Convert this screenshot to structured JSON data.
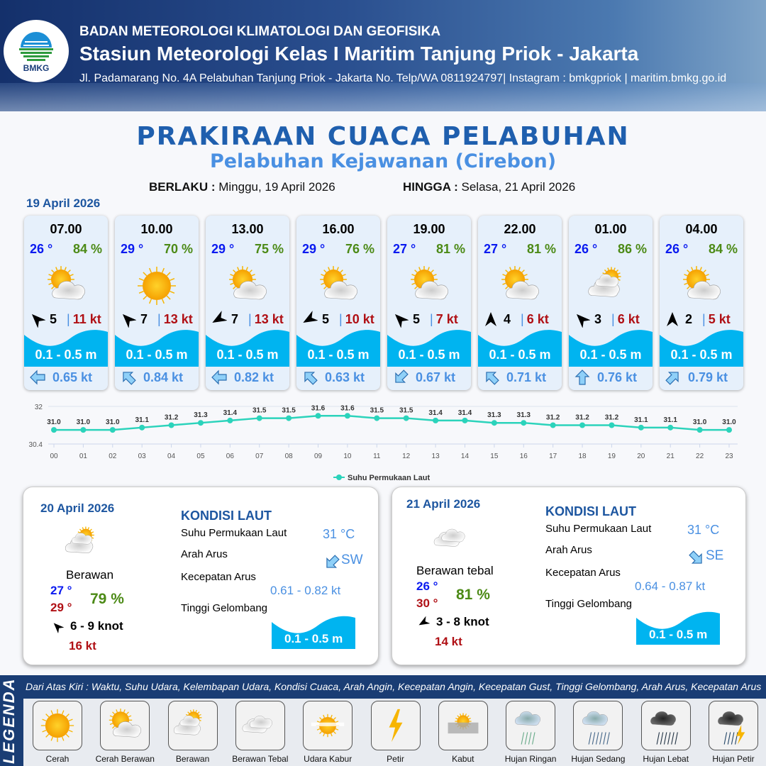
{
  "header": {
    "org": "BADAN METEOROLOGI KLIMATOLOGI DAN GEOFISIKA",
    "station": "Stasiun Meteorologi Kelas I Maritim Tanjung Priok - Jakarta",
    "address": "Jl. Padamarang No. 4A Pelabuhan Tanjung Priok - Jakarta No. Telp/WA 0811924797| Instagram : bmkgpriok | maritim.bmkg.go.id",
    "logo_text": "BMKG"
  },
  "title": "PRAKIRAAN CUACA PELABUHAN",
  "subtitle": "Pelabuhan Kejawanan (Cirebon)",
  "validity": {
    "from_label": "BERLAKU :",
    "from": "Minggu, 19 April 2026",
    "to_label": "HINGGA :",
    "to": "Selasa, 21 April 2026"
  },
  "day0_date": "19 April 2026",
  "colors": {
    "temp": "#0a1af0",
    "humidity": "#4c8a16",
    "gust": "#b01015",
    "wave": "#00b4f0",
    "current": "#4a90e2",
    "chart_line": "#2bd3bb"
  },
  "forecast": [
    {
      "time": "07.00",
      "temp": "26 °",
      "hum": "84 %",
      "icon": "cerah-berawan",
      "wind_rot": -45,
      "wind": "5",
      "gust": "11 kt",
      "wave": "0.1 - 0.5 m",
      "cur_rot": -90,
      "cur": "0.65 kt"
    },
    {
      "time": "10.00",
      "temp": "29 °",
      "hum": "70 %",
      "icon": "cerah",
      "wind_rot": -45,
      "wind": "7",
      "gust": "13 kt",
      "wave": "0.1 - 0.5 m",
      "cur_rot": -45,
      "cur": "0.84 kt"
    },
    {
      "time": "13.00",
      "temp": "29 °",
      "hum": "75 %",
      "icon": "cerah-berawan",
      "wind_rot": -120,
      "wind": "7",
      "gust": "13 kt",
      "wave": "0.1 - 0.5 m",
      "cur_rot": -90,
      "cur": "0.82 kt"
    },
    {
      "time": "16.00",
      "temp": "29 °",
      "hum": "76 %",
      "icon": "cerah-berawan",
      "wind_rot": -120,
      "wind": "5",
      "gust": "10 kt",
      "wave": "0.1 - 0.5 m",
      "cur_rot": -45,
      "cur": "0.63 kt"
    },
    {
      "time": "19.00",
      "temp": "27 °",
      "hum": "81 %",
      "icon": "cerah-berawan",
      "wind_rot": -45,
      "wind": "5",
      "gust": "7 kt",
      "wave": "0.1 - 0.5 m",
      "cur_rot": -135,
      "cur": "0.67 kt"
    },
    {
      "time": "22.00",
      "temp": "27 °",
      "hum": "81 %",
      "icon": "cerah-berawan",
      "wind_rot": 0,
      "wind": "4",
      "gust": "6 kt",
      "wave": "0.1 - 0.5 m",
      "cur_rot": -45,
      "cur": "0.71 kt"
    },
    {
      "time": "01.00",
      "temp": "26 °",
      "hum": "86 %",
      "icon": "berawan",
      "wind_rot": -45,
      "wind": "3",
      "gust": "6 kt",
      "wave": "0.1 - 0.5 m",
      "cur_rot": 0,
      "cur": "0.76 kt"
    },
    {
      "time": "04.00",
      "temp": "26 °",
      "hum": "84 %",
      "icon": "cerah-berawan",
      "wind_rot": 0,
      "wind": "2",
      "gust": "5 kt",
      "wave": "0.1 - 0.5 m",
      "cur_rot": 45,
      "cur": "0.79 kt"
    }
  ],
  "chart_data": {
    "type": "line",
    "categories": [
      "00",
      "01",
      "02",
      "03",
      "04",
      "05",
      "06",
      "07",
      "08",
      "09",
      "10",
      "11",
      "12",
      "13",
      "14",
      "15",
      "16",
      "17",
      "18",
      "19",
      "20",
      "21",
      "22",
      "23"
    ],
    "series": [
      {
        "name": "Suhu Permukaan Laut",
        "values": [
          31.0,
          31.0,
          31.0,
          31.1,
          31.2,
          31.3,
          31.4,
          31.5,
          31.5,
          31.6,
          31.6,
          31.5,
          31.5,
          31.4,
          31.4,
          31.3,
          31.3,
          31.2,
          31.2,
          31.2,
          31.1,
          31.1,
          31.0,
          31.0
        ]
      }
    ],
    "yticks": [
      "32",
      "30.4"
    ],
    "ylim": [
      30.4,
      32
    ],
    "legend": "bottom",
    "grid": true
  },
  "days": [
    {
      "date": "20 April 2026",
      "condition": "Berawan",
      "tmin": "27 °",
      "tmax": "29 °",
      "hum": "79 %",
      "wind": "6  - 9 knot",
      "gust": "16 kt",
      "wind_rot": -45,
      "sea_title": "KONDISI LAUT",
      "sst_label": "Suhu Permukaan Laut",
      "sst": "31 °C",
      "dir_label": "Arah Arus",
      "dir": "SW",
      "cur_rot": -135,
      "speed_label": "Kecepatan Arus",
      "speed": "0.61  - 0.82 kt",
      "wave_label": "Tinggi Gelombang",
      "wave": "0.1 - 0.5 m"
    },
    {
      "date": "21 April 2026",
      "condition": "Berawan tebal",
      "tmin": "26 °",
      "tmax": "30 °",
      "hum": "81 %",
      "wind": "3  - 8 knot",
      "gust": "14 kt",
      "wind_rot": -120,
      "sea_title": "KONDISI LAUT",
      "sst_label": "Suhu Permukaan Laut",
      "sst": "31 °C",
      "dir_label": "Arah Arus",
      "dir": "SE",
      "cur_rot": 135,
      "speed_label": "Kecepatan Arus",
      "speed": "0.64  - 0.87 kt",
      "wave_label": "Tinggi Gelombang",
      "wave": "0.1 - 0.5 m"
    }
  ],
  "legend": {
    "title": "LEGENDA",
    "description": "Dari Atas Kiri : Waktu, Suhu Udara, Kelembapan Udara, Kondisi Cuaca, Arah Angin, Kecepatan Angin, Kecepatan Gust, Tinggi Gelombang, Arah Arus, Kecepatan Arus",
    "items": [
      {
        "label": "Cerah",
        "icon": "cerah"
      },
      {
        "label": "Cerah Berawan",
        "icon": "cerah-berawan"
      },
      {
        "label": "Berawan",
        "icon": "berawan"
      },
      {
        "label": "Berawan Tebal",
        "icon": "berawan-tebal"
      },
      {
        "label": "Udara Kabur",
        "icon": "udara-kabur"
      },
      {
        "label": "Petir",
        "icon": "petir"
      },
      {
        "label": "Kabut",
        "icon": "kabut"
      },
      {
        "label": "Hujan Ringan",
        "icon": "hujan-ringan"
      },
      {
        "label": "Hujan Sedang",
        "icon": "hujan-sedang"
      },
      {
        "label": "Hujan Lebat",
        "icon": "hujan-lebat"
      },
      {
        "label": "Hujan Petir",
        "icon": "hujan-petir"
      }
    ]
  }
}
